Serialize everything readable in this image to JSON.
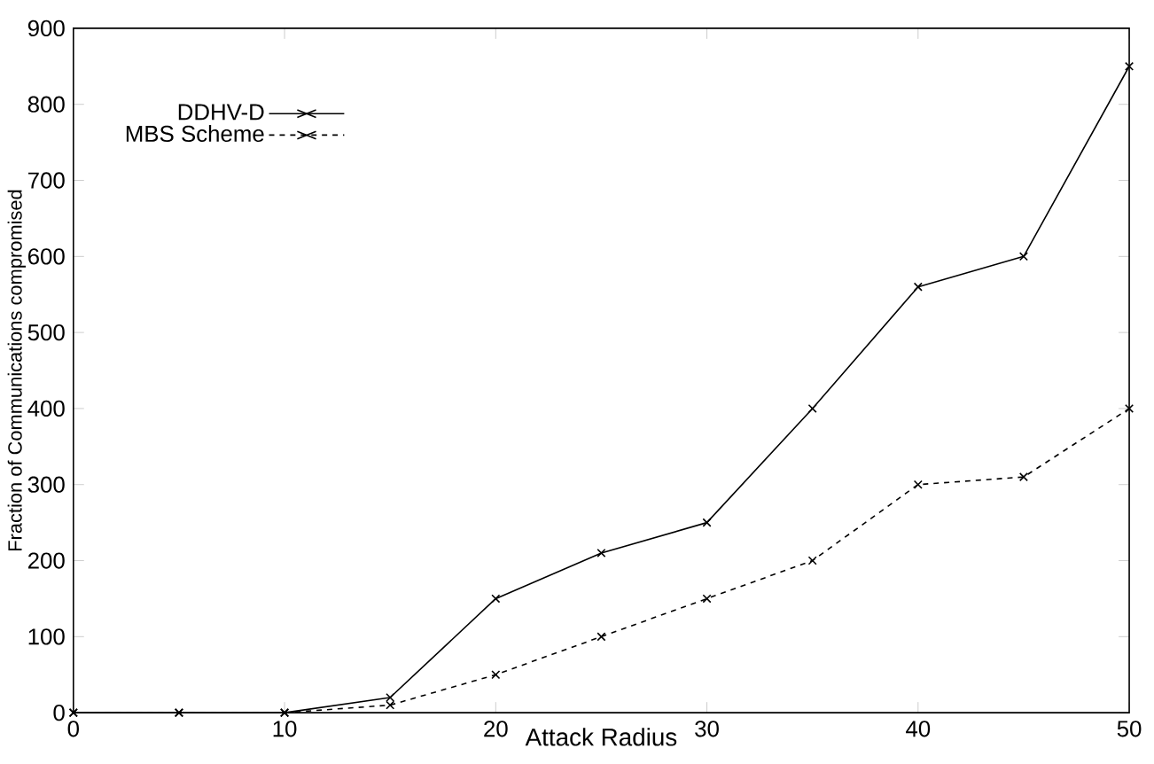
{
  "chart_data": {
    "type": "line",
    "xlabel": "Attack Radius",
    "ylabel": "Fraction of Communications compromised",
    "x": [
      0,
      5,
      10,
      15,
      20,
      25,
      30,
      35,
      40,
      45,
      50
    ],
    "series": [
      {
        "name": "DDHV-D",
        "color": "#000000",
        "line_style": "solid",
        "values": [
          0,
          0,
          0,
          20,
          150,
          210,
          250,
          400,
          560,
          600,
          850
        ]
      },
      {
        "name": "MBS Scheme",
        "color": "#000000",
        "line_style": "dashed",
        "values": [
          0,
          0,
          0,
          10,
          50,
          100,
          150,
          200,
          300,
          310,
          400
        ]
      }
    ],
    "marker": "cross",
    "xlim": [
      0,
      50
    ],
    "ylim": [
      0,
      900
    ],
    "xticks": [
      0,
      10,
      20,
      30,
      40,
      50
    ],
    "yticks": [
      0,
      100,
      200,
      300,
      400,
      500,
      600,
      700,
      800,
      900
    ],
    "grid": false,
    "legend": "top left"
  }
}
